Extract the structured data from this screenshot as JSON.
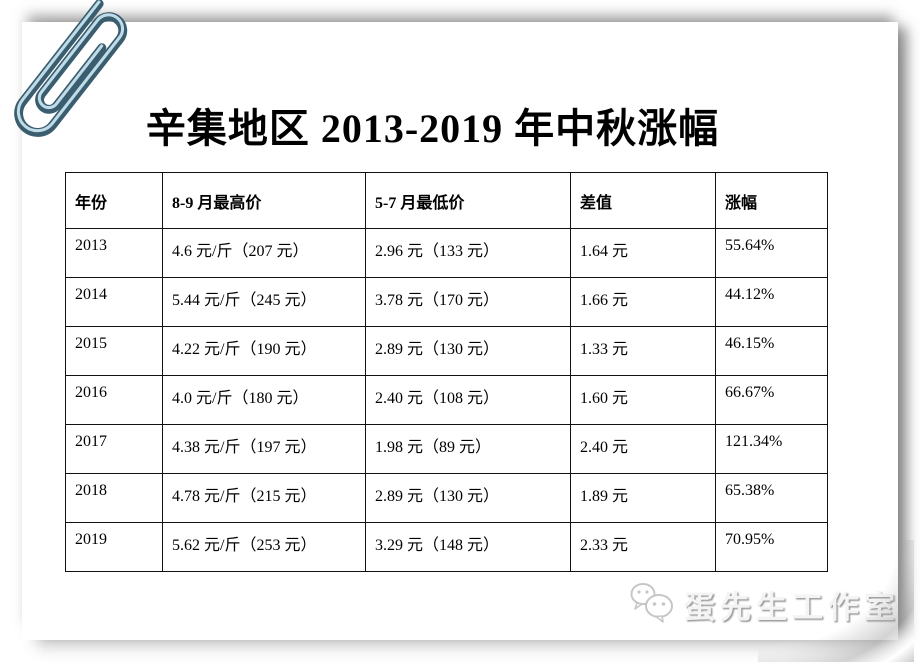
{
  "title": "辛集地区 2013-2019 年中秋涨幅",
  "table": {
    "headers": [
      "年份",
      "8-9 月最高价",
      "5-7 月最低价",
      "差值",
      "涨幅"
    ],
    "rows": [
      [
        "2013",
        "4.6 元/斤（207 元）",
        "2.96 元（133 元）",
        "1.64 元",
        "55.64%"
      ],
      [
        "2014",
        "5.44 元/斤（245 元）",
        "3.78 元（170 元）",
        "1.66 元",
        "44.12%"
      ],
      [
        "2015",
        "4.22 元/斤（190 元）",
        "2.89 元（130 元）",
        "1.33 元",
        "46.15%"
      ],
      [
        "2016",
        "4.0 元/斤（180 元）",
        "2.40 元（108 元）",
        "1.60 元",
        "66.67%"
      ],
      [
        "2017",
        "4.38 元/斤（197 元）",
        "1.98 元（89 元）",
        "2.40 元",
        "121.34%"
      ],
      [
        "2018",
        "4.78 元/斤（215 元）",
        "2.89 元（130 元）",
        "1.89 元",
        "65.38%"
      ],
      [
        "2019",
        "5.62 元/斤（253 元）",
        "3.29 元（148 元）",
        "2.33 元",
        "70.95%"
      ]
    ]
  },
  "watermark": {
    "text": "蛋先生工作室",
    "icon": "wechat-chat-bubbles-icon"
  },
  "decorations": {
    "paperclip": "paperclip-icon",
    "page_curl": "page-curl-effect"
  },
  "colors": {
    "page_background": "#ffffff",
    "text": "#000000",
    "table_border": "#111111",
    "paperclip_dark": "#3a5d70",
    "paperclip_highlight": "#bfdce8",
    "watermark_gray": "#c6c6c6",
    "shadow_gray": "#9a9a9a"
  }
}
